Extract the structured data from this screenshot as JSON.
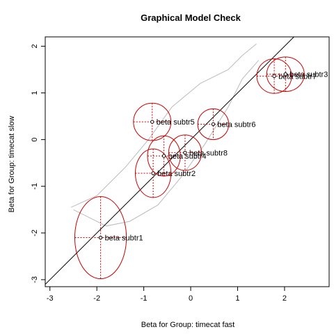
{
  "chart_data": {
    "type": "scatter",
    "title": "Graphical Model Check",
    "xlabel": "Beta for Group: timecat fast",
    "ylabel": "Beta for Group: timecat slow",
    "xlim": [
      -3.1,
      2.95
    ],
    "ylim": [
      -3.15,
      2.2
    ],
    "xticks": [
      -3,
      -2,
      -1,
      0,
      1,
      2
    ],
    "yticks": [
      -3,
      -2,
      -1,
      0,
      1,
      2
    ],
    "grid": false,
    "reference_line": {
      "slope": 1,
      "intercept": 0,
      "color": "#000000"
    },
    "confidence_band": {
      "color": "#bbbbbb",
      "upper": [
        [
          -2.55,
          -1.45
        ],
        [
          -2.0,
          -1.2
        ],
        [
          -1.4,
          -0.6
        ],
        [
          -0.9,
          0.0
        ],
        [
          -0.4,
          0.7
        ],
        [
          0.2,
          1.2
        ],
        [
          0.8,
          1.5
        ],
        [
          1.1,
          1.8
        ],
        [
          1.4,
          2.05
        ]
      ],
      "lower": [
        [
          -2.5,
          -1.5
        ],
        [
          -1.8,
          -1.85
        ],
        [
          -1.3,
          -1.75
        ],
        [
          -0.7,
          -1.4
        ],
        [
          -0.2,
          -0.8
        ],
        [
          0.3,
          -0.1
        ],
        [
          0.8,
          0.7
        ],
        [
          1.1,
          1.3
        ],
        [
          1.45,
          1.7
        ]
      ]
    },
    "points": [
      {
        "label": "beta subtr1",
        "x": -1.92,
        "y": -2.1,
        "rx": 0.55,
        "ry": 0.88
      },
      {
        "label": "beta subtr2",
        "x": -0.8,
        "y": -0.72,
        "rx": 0.38,
        "ry": 0.52
      },
      {
        "label": "beta subtr4",
        "x": -0.57,
        "y": -0.35,
        "rx": 0.35,
        "ry": 0.43
      },
      {
        "label": "beta subtr5",
        "x": -0.82,
        "y": 0.38,
        "rx": 0.4,
        "ry": 0.4
      },
      {
        "label": "beta subtr6",
        "x": 0.48,
        "y": 0.33,
        "rx": 0.33,
        "ry": 0.33
      },
      {
        "label": "beta subtr8",
        "x": -0.12,
        "y": -0.28,
        "rx": 0.35,
        "ry": 0.38
      },
      {
        "label": "beta subtr7",
        "x": 1.78,
        "y": 1.36,
        "rx": 0.37,
        "ry": 0.37
      },
      {
        "label": "beta subtr3",
        "x": 2.02,
        "y": 1.4,
        "rx": 0.4,
        "ry": 0.37
      }
    ],
    "ellipse_color": "#cc0000",
    "point_color": "#000000"
  }
}
